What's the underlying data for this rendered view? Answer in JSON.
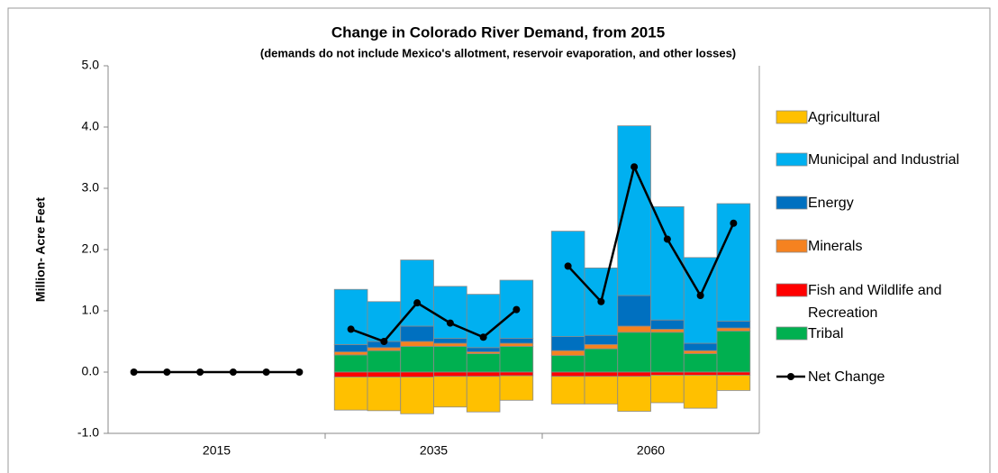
{
  "chart_data": {
    "type": "bar",
    "stacked": true,
    "title": "Change in Colorado River Demand, from 2015",
    "subtitle": "(demands do not include Mexico's allotment, reservoir evaporation, and other losses)",
    "y_label": "Million- Acre Feet",
    "categories": [
      "2015",
      "2035",
      "2060"
    ],
    "ylim": [
      -1,
      5
    ],
    "yticks": [
      {
        "value": -1,
        "label": "-1.0"
      },
      {
        "value": 0,
        "label": "0.0"
      },
      {
        "value": 1,
        "label": "1.0"
      },
      {
        "value": 2,
        "label": "2.0"
      },
      {
        "value": 3,
        "label": "3.0"
      },
      {
        "value": 4,
        "label": "4.0"
      },
      {
        "value": 5,
        "label": "5.0"
      }
    ],
    "legend": "right",
    "series": [
      {
        "name": "Agricultural",
        "color": "#FFC000",
        "values": [
          [
            0,
            0,
            0,
            0,
            0,
            0
          ],
          [
            -0.54,
            -0.55,
            -0.6,
            -0.5,
            -0.58,
            -0.4
          ],
          [
            -0.45,
            -0.45,
            -0.57,
            -0.45,
            -0.54,
            -0.25
          ]
        ]
      },
      {
        "name": "Municipal and Industrial",
        "color": "#00B0F0",
        "values": [
          [
            0,
            0,
            0,
            0,
            0,
            0
          ],
          [
            0.9,
            0.65,
            1.08,
            0.85,
            0.87,
            0.95
          ],
          [
            1.72,
            1.1,
            2.77,
            1.85,
            1.4,
            1.92
          ]
        ]
      },
      {
        "name": "Energy",
        "color": "#0070C0",
        "values": [
          [
            0,
            0,
            0,
            0,
            0,
            0
          ],
          [
            0.12,
            0.1,
            0.25,
            0.08,
            0.07,
            0.08
          ],
          [
            0.23,
            0.15,
            0.5,
            0.15,
            0.12,
            0.11
          ]
        ]
      },
      {
        "name": "Minerals",
        "color": "#F58220",
        "values": [
          [
            0,
            0,
            0,
            0,
            0,
            0
          ],
          [
            0.05,
            0.05,
            0.08,
            0.05,
            0.03,
            0.05
          ],
          [
            0.08,
            0.07,
            0.1,
            0.05,
            0.05,
            0.05
          ]
        ]
      },
      {
        "name": "Fish and Wildlife and Recreation",
        "color": "#FF0000",
        "values": [
          [
            0,
            0,
            0,
            0,
            0,
            0
          ],
          [
            -0.08,
            -0.08,
            -0.08,
            -0.07,
            -0.07,
            -0.06
          ],
          [
            -0.07,
            -0.07,
            -0.07,
            -0.05,
            -0.05,
            -0.05
          ]
        ]
      },
      {
        "name": "Tribal",
        "color": "#00B050",
        "values": [
          [
            0,
            0,
            0,
            0,
            0,
            0
          ],
          [
            0.28,
            0.35,
            0.42,
            0.42,
            0.3,
            0.42
          ],
          [
            0.27,
            0.38,
            0.65,
            0.65,
            0.3,
            0.67
          ]
        ]
      },
      {
        "name": "Net Change",
        "type": "line",
        "color": "#000000",
        "values": [
          [
            0,
            0,
            0,
            0,
            0,
            0
          ],
          [
            0.7,
            0.5,
            1.13,
            0.8,
            0.57,
            1.02
          ],
          [
            1.73,
            1.15,
            3.35,
            2.17,
            1.25,
            2.43
          ]
        ]
      }
    ]
  }
}
